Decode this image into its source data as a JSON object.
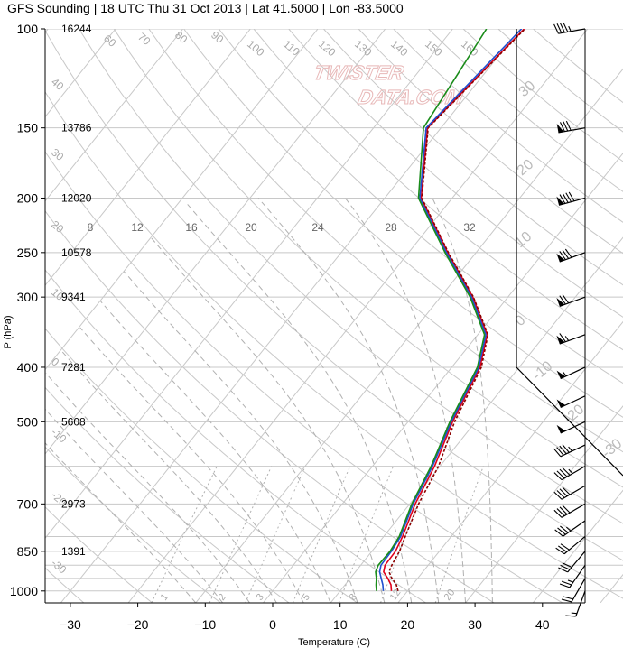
{
  "chart_data": {
    "type": "line",
    "title": "GFS Sounding | 18 UTC Thu 31 Oct 2013 | Lat 41.5000 | Lon -83.5000",
    "xlabel": "Temperature (C)",
    "ylabel": "P (hPa)",
    "xlim": [
      -34,
      44
    ],
    "ylim": [
      1050,
      100
    ],
    "y_scale": "log",
    "x_ticks": [
      -30,
      -20,
      -10,
      0,
      10,
      20,
      30,
      40
    ],
    "pressure_levels": [
      {
        "p": 100,
        "label": "100",
        "height": "16244"
      },
      {
        "p": 150,
        "label": "150",
        "height": "13786"
      },
      {
        "p": 200,
        "label": "200",
        "height": "12020"
      },
      {
        "p": 250,
        "label": "250",
        "height": "10578"
      },
      {
        "p": 300,
        "label": "300",
        "height": "9341"
      },
      {
        "p": 400,
        "label": "400",
        "height": "7281"
      },
      {
        "p": 500,
        "label": "500",
        "height": "5608"
      },
      {
        "p": 700,
        "label": "700",
        "height": "2973"
      },
      {
        "p": 850,
        "label": "850",
        "height": "1391"
      },
      {
        "p": 1000,
        "label": "1000",
        "height": ""
      }
    ],
    "extra_isobars": [
      600,
      800,
      900,
      950
    ],
    "dry_adiabat_labels": [
      "100",
      "110",
      "120",
      "130",
      "140",
      "150",
      "160",
      "90",
      "80",
      "70",
      "60",
      "50",
      "40",
      "30",
      "20",
      "10",
      "0",
      "-10",
      "-20",
      "-30"
    ],
    "mixing_ratio_labels": [
      "8",
      "12",
      "16",
      "20",
      "24",
      "28",
      "32"
    ],
    "mixing_ratio_bottom_labels": [
      "1",
      "2",
      "3",
      "5",
      "8",
      "12",
      "20"
    ],
    "skewed_isotherm_labels": [
      "30",
      "20",
      "10",
      "0",
      "-10",
      "-20",
      "-30"
    ],
    "series": [
      {
        "name": "",
        "color": "#e0001b",
        "style": "solid",
        "points": [
          [
            1000,
            17.6
          ],
          [
            975,
            16.8
          ],
          [
            950,
            15.6
          ],
          [
            925,
            14.2
          ],
          [
            900,
            13.6
          ],
          [
            850,
            13.5
          ],
          [
            800,
            12.8
          ],
          [
            700,
            10.8
          ],
          [
            600,
            9.2
          ],
          [
            500,
            6.6
          ],
          [
            400,
            4.2
          ],
          [
            350,
            1.4
          ],
          [
            300,
            -5.2
          ],
          [
            250,
            -14.2
          ],
          [
            200,
            -24.6
          ],
          [
            150,
            -32.0
          ],
          [
            100,
            -29.4
          ]
        ]
      },
      {
        "name": "",
        "color": "#8b0000",
        "style": "dotted",
        "points": [
          [
            1000,
            18.6
          ],
          [
            975,
            17.6
          ],
          [
            950,
            16.2
          ],
          [
            925,
            15.0
          ],
          [
            900,
            14.6
          ],
          [
            850,
            14.1
          ],
          [
            800,
            13.2
          ],
          [
            700,
            11.3
          ],
          [
            600,
            9.8
          ],
          [
            500,
            6.9
          ],
          [
            400,
            4.4
          ],
          [
            350,
            1.5
          ],
          [
            300,
            -5.1
          ],
          [
            250,
            -14.1
          ],
          [
            200,
            -24.5
          ],
          [
            150,
            -31.9
          ],
          [
            100,
            -29.3
          ]
        ]
      },
      {
        "name": "",
        "color": "#1f4fd0",
        "style": "solid",
        "points": [
          [
            1000,
            16.4
          ],
          [
            975,
            15.6
          ],
          [
            950,
            14.6
          ],
          [
            925,
            13.6
          ],
          [
            900,
            13.0
          ],
          [
            850,
            12.9
          ],
          [
            800,
            12.5
          ],
          [
            700,
            10.5
          ],
          [
            600,
            8.9
          ],
          [
            500,
            6.4
          ],
          [
            400,
            4.0
          ],
          [
            350,
            1.2
          ],
          [
            300,
            -5.4
          ],
          [
            250,
            -14.4
          ],
          [
            200,
            -24.8
          ],
          [
            150,
            -32.2
          ],
          [
            100,
            -29.8
          ]
        ]
      },
      {
        "name": "",
        "color": "#1a8c1a",
        "style": "solid",
        "points": [
          [
            1000,
            15.4
          ],
          [
            975,
            14.6
          ],
          [
            950,
            13.9
          ],
          [
            925,
            13.0
          ],
          [
            900,
            12.6
          ],
          [
            850,
            12.7
          ],
          [
            800,
            12.3
          ],
          [
            700,
            10.3
          ],
          [
            600,
            8.7
          ],
          [
            500,
            6.2
          ],
          [
            400,
            3.8
          ],
          [
            350,
            1.0
          ],
          [
            300,
            -5.6
          ],
          [
            250,
            -14.6
          ],
          [
            200,
            -25.0
          ],
          [
            150,
            -32.6
          ],
          [
            100,
            -35.0
          ]
        ]
      }
    ],
    "wind_barbs": [
      {
        "p": 1000,
        "dir": 200,
        "speed": 15
      },
      {
        "p": 950,
        "dir": 210,
        "speed": 20
      },
      {
        "p": 900,
        "dir": 215,
        "speed": 25
      },
      {
        "p": 850,
        "dir": 220,
        "speed": 30
      },
      {
        "p": 800,
        "dir": 230,
        "speed": 30
      },
      {
        "p": 750,
        "dir": 235,
        "speed": 35
      },
      {
        "p": 700,
        "dir": 240,
        "speed": 40
      },
      {
        "p": 650,
        "dir": 240,
        "speed": 40
      },
      {
        "p": 600,
        "dir": 240,
        "speed": 45
      },
      {
        "p": 550,
        "dir": 245,
        "speed": 45
      },
      {
        "p": 500,
        "dir": 245,
        "speed": 50
      },
      {
        "p": 450,
        "dir": 245,
        "speed": 50
      },
      {
        "p": 400,
        "dir": 245,
        "speed": 55
      },
      {
        "p": 350,
        "dir": 250,
        "speed": 65
      },
      {
        "p": 300,
        "dir": 250,
        "speed": 70
      },
      {
        "p": 250,
        "dir": 250,
        "speed": 80
      },
      {
        "p": 200,
        "dir": 255,
        "speed": 90
      },
      {
        "p": 150,
        "dir": 260,
        "speed": 80
      },
      {
        "p": 100,
        "dir": 260,
        "speed": 45
      }
    ],
    "watermark": "TWISTERDATA.COM"
  }
}
